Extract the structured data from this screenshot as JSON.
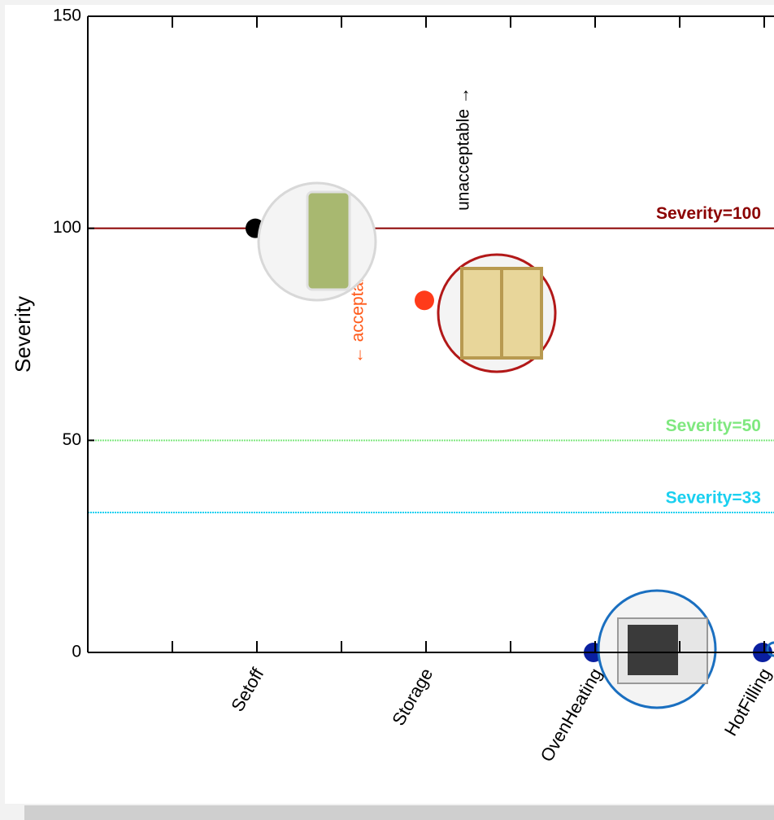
{
  "chart_data": {
    "type": "scatter",
    "ylabel": "Severity",
    "categories": [
      null,
      "Setoff",
      null,
      "Storage",
      null,
      "OvenHeating",
      null,
      "HotFilling"
    ],
    "values": [
      null,
      100,
      null,
      83,
      null,
      0,
      null,
      0
    ],
    "colors": [
      null,
      "#000000",
      null,
      "#ff3b1a",
      null,
      "#0a1fa0",
      null,
      "#0a1fa0"
    ],
    "ylim": [
      0,
      150
    ],
    "yticks": [
      0,
      50,
      100,
      150
    ],
    "reference_lines": [
      {
        "value": 100,
        "label": "Severity=100",
        "color": "#8b0000"
      },
      {
        "value": 50,
        "label": "Severity=50",
        "color": "#7fe87f"
      },
      {
        "value": 33,
        "label": "Severity=33",
        "color": "#1ad0f0"
      }
    ],
    "annotations": [
      {
        "text": "unacceptable →",
        "color": "#000000"
      },
      {
        "text": "← acceptable",
        "color": "#ff5a1a"
      }
    ]
  }
}
